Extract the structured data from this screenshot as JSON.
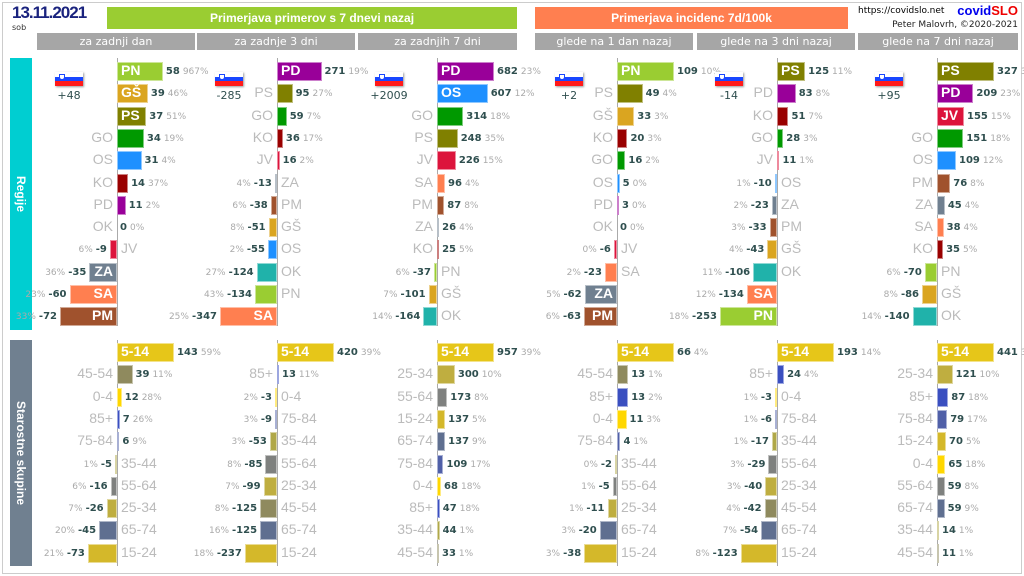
{
  "header": {
    "date": "13.11.2021",
    "weekday": "sob",
    "title_cases": "Primerjava primerov s 7 dnevi nazaj",
    "title_incidence": "Primerjava incidenc 7d/100k",
    "url": "https://covidslo.net",
    "brand_a": "covid",
    "brand_b": "SLO",
    "author": "Peter Malovrh, ©2020-2021"
  },
  "sections": {
    "regions": "Regije",
    "ages": "Starostne skupine"
  },
  "colors": {
    "PN": "#9acd32",
    "GŠ": "#daa520",
    "PS": "#808000",
    "GO": "#009900",
    "OS": "#1e90ff",
    "KO": "#990000",
    "PD": "#990099",
    "OK": "#20b2aa",
    "JV": "#dc143c",
    "ZA": "#708090",
    "SA": "#ff7f50",
    "PM": "#a0522d",
    "5-14": "#e6c619",
    "45-54": "#8f8a5e",
    "0-4": "#ffd700",
    "85+": "#3a4fc0",
    "75-84": "#5060a8",
    "35-44": "#b0a848",
    "55-64": "#7f817f",
    "25-34": "#bfae40",
    "65-74": "#5f6f90",
    "15-24": "#d4b82a"
  },
  "panels": [
    {
      "header": "za zadnji dan",
      "total": "+48",
      "regions": [
        [
          "PN",
          58,
          "967%"
        ],
        [
          "GŠ",
          39,
          "46%"
        ],
        [
          "PS",
          37,
          "51%"
        ],
        [
          "GO",
          34,
          "19%"
        ],
        [
          "OS",
          31,
          "4%"
        ],
        [
          "KO",
          14,
          "37%"
        ],
        [
          "PD",
          11,
          "2%"
        ],
        [
          "OK",
          0,
          "0%"
        ],
        [
          "JV",
          -9,
          "6%"
        ],
        [
          "ZA",
          -35,
          "36%"
        ],
        [
          "SA",
          -60,
          "23%"
        ],
        [
          "PM",
          -72,
          "33%"
        ]
      ],
      "ages": [
        [
          "5-14",
          143,
          "59%"
        ],
        [
          "45-54",
          39,
          "11%"
        ],
        [
          "0-4",
          12,
          "28%"
        ],
        [
          "85+",
          7,
          "26%"
        ],
        [
          "75-84",
          6,
          "9%"
        ],
        [
          "35-44",
          -5,
          "1%"
        ],
        [
          "55-64",
          -16,
          "6%"
        ],
        [
          "25-34",
          -26,
          "7%"
        ],
        [
          "65-74",
          -45,
          "20%"
        ],
        [
          "15-24",
          -73,
          "21%"
        ]
      ]
    },
    {
      "header": "za zadnje 3 dni",
      "total": "-285",
      "regions": [
        [
          "PD",
          271,
          "19%"
        ],
        [
          "PS",
          95,
          "27%"
        ],
        [
          "GO",
          59,
          "7%"
        ],
        [
          "KO",
          36,
          "17%"
        ],
        [
          "JV",
          16,
          "2%"
        ],
        [
          "ZA",
          -13,
          "4%"
        ],
        [
          "PM",
          -38,
          "6%"
        ],
        [
          "GŠ",
          -51,
          "8%"
        ],
        [
          "OS",
          -55,
          "2%"
        ],
        [
          "OK",
          -124,
          "27%"
        ],
        [
          "PN",
          -134,
          "43%"
        ],
        [
          "SA",
          -347,
          "25%"
        ]
      ],
      "ages": [
        [
          "5-14",
          420,
          "39%"
        ],
        [
          "85+",
          13,
          "11%"
        ],
        [
          "0-4",
          -3,
          "2%"
        ],
        [
          "75-84",
          -9,
          "3%"
        ],
        [
          "35-44",
          -53,
          "3%"
        ],
        [
          "55-64",
          -85,
          "8%"
        ],
        [
          "25-34",
          -99,
          "7%"
        ],
        [
          "45-54",
          -125,
          "8%"
        ],
        [
          "65-74",
          -125,
          "16%"
        ],
        [
          "15-24",
          -237,
          "18%"
        ]
      ]
    },
    {
      "header": "za zadnjih 7 dni",
      "total": "+2009",
      "regions": [
        [
          "PD",
          682,
          "23%"
        ],
        [
          "OS",
          607,
          "12%"
        ],
        [
          "GO",
          314,
          "18%"
        ],
        [
          "PS",
          248,
          "35%"
        ],
        [
          "JV",
          226,
          "15%"
        ],
        [
          "SA",
          96,
          "4%"
        ],
        [
          "PM",
          87,
          "8%"
        ],
        [
          "ZA",
          26,
          "4%"
        ],
        [
          "KO",
          25,
          "5%"
        ],
        [
          "PN",
          -37,
          "6%"
        ],
        [
          "GŠ",
          -101,
          "7%"
        ],
        [
          "OK",
          -164,
          "14%"
        ]
      ],
      "ages": [
        [
          "5-14",
          957,
          "39%"
        ],
        [
          "25-34",
          300,
          "10%"
        ],
        [
          "55-64",
          173,
          "8%"
        ],
        [
          "15-24",
          137,
          "5%"
        ],
        [
          "65-74",
          137,
          "9%"
        ],
        [
          "75-84",
          109,
          "17%"
        ],
        [
          "0-4",
          68,
          "18%"
        ],
        [
          "85+",
          47,
          "18%"
        ],
        [
          "35-44",
          44,
          "1%"
        ],
        [
          "45-54",
          33,
          "1%"
        ]
      ]
    },
    {
      "header": "glede na 1 dan nazaj",
      "total": "+2",
      "regions": [
        [
          "PN",
          109,
          "10%"
        ],
        [
          "PS",
          49,
          "4%"
        ],
        [
          "GŠ",
          33,
          "3%"
        ],
        [
          "KO",
          20,
          "3%"
        ],
        [
          "GO",
          16,
          "2%"
        ],
        [
          "OS",
          5,
          "0%"
        ],
        [
          "PD",
          3,
          "0%"
        ],
        [
          "OK",
          0,
          "0%"
        ],
        [
          "JV",
          -6,
          "0%"
        ],
        [
          "SA",
          -23,
          "2%"
        ],
        [
          "ZA",
          -62,
          "5%"
        ],
        [
          "PM",
          -63,
          "6%"
        ]
      ],
      "ages": [
        [
          "5-14",
          66,
          "4%"
        ],
        [
          "45-54",
          13,
          "1%"
        ],
        [
          "85+",
          13,
          "2%"
        ],
        [
          "0-4",
          11,
          "3%"
        ],
        [
          "75-84",
          4,
          "1%"
        ],
        [
          "35-44",
          -2,
          "0%"
        ],
        [
          "55-64",
          -5,
          "1%"
        ],
        [
          "25-34",
          -11,
          "1%"
        ],
        [
          "65-74",
          -20,
          "3%"
        ],
        [
          "15-24",
          -38,
          "3%"
        ]
      ]
    },
    {
      "header": "glede na 3 dni nazaj",
      "total": "-14",
      "regions": [
        [
          "PS",
          125,
          "11%"
        ],
        [
          "PD",
          83,
          "8%"
        ],
        [
          "KO",
          51,
          "7%"
        ],
        [
          "GO",
          28,
          "3%"
        ],
        [
          "JV",
          11,
          "1%"
        ],
        [
          "OS",
          -10,
          "1%"
        ],
        [
          "ZA",
          -23,
          "2%"
        ],
        [
          "PM",
          -33,
          "3%"
        ],
        [
          "GŠ",
          -43,
          "4%"
        ],
        [
          "OK",
          -106,
          "11%"
        ],
        [
          "SA",
          -134,
          "12%"
        ],
        [
          "PN",
          -253,
          "18%"
        ]
      ],
      "ages": [
        [
          "5-14",
          193,
          "14%"
        ],
        [
          "85+",
          24,
          "4%"
        ],
        [
          "0-4",
          -3,
          "1%"
        ],
        [
          "75-84",
          -6,
          "1%"
        ],
        [
          "35-44",
          -17,
          "1%"
        ],
        [
          "55-64",
          -29,
          "3%"
        ],
        [
          "25-34",
          -40,
          "3%"
        ],
        [
          "45-54",
          -42,
          "4%"
        ],
        [
          "65-74",
          -54,
          "7%"
        ],
        [
          "15-24",
          -123,
          "8%"
        ]
      ]
    },
    {
      "header": "glede na 7 dni nazaj",
      "total": "+95",
      "regions": [
        [
          "PS",
          327,
          "35%"
        ],
        [
          "PD",
          209,
          "23%"
        ],
        [
          "JV",
          155,
          "15%"
        ],
        [
          "GO",
          151,
          "18%"
        ],
        [
          "OS",
          109,
          "12%"
        ],
        [
          "PM",
          76,
          "8%"
        ],
        [
          "ZA",
          45,
          "4%"
        ],
        [
          "SA",
          38,
          "4%"
        ],
        [
          "KO",
          35,
          "5%"
        ],
        [
          "PN",
          -70,
          "6%"
        ],
        [
          "GŠ",
          -86,
          "8%"
        ],
        [
          "OK",
          -140,
          "14%"
        ]
      ],
      "ages": [
        [
          "5-14",
          441,
          "39%"
        ],
        [
          "25-34",
          121,
          "10%"
        ],
        [
          "85+",
          87,
          "18%"
        ],
        [
          "75-84",
          79,
          "17%"
        ],
        [
          "15-24",
          70,
          "5%"
        ],
        [
          "0-4",
          65,
          "18%"
        ],
        [
          "55-64",
          59,
          "8%"
        ],
        [
          "65-74",
          59,
          "9%"
        ],
        [
          "35-44",
          14,
          "1%"
        ],
        [
          "45-54",
          11,
          "1%"
        ]
      ]
    }
  ]
}
